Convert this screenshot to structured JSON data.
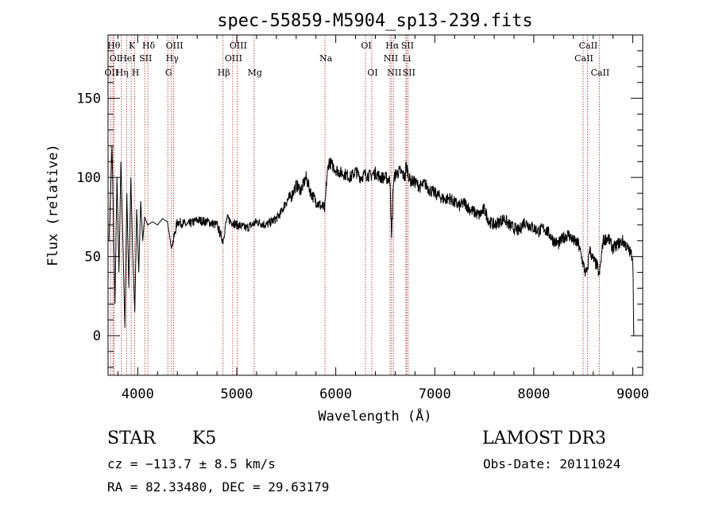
{
  "chart_data": {
    "type": "line",
    "title": "spec-55859-M5904_sp13-239.fits",
    "xlabel": "Wavelength (Å)",
    "ylabel": "Flux (relative)",
    "xlim": [
      3700,
      9100
    ],
    "ylim": [
      -25,
      190
    ],
    "xticks": [
      {
        "value": 4000,
        "label": "4000"
      },
      {
        "value": 5000,
        "label": "5000"
      },
      {
        "value": 6000,
        "label": "6000"
      },
      {
        "value": 7000,
        "label": "7000"
      },
      {
        "value": 8000,
        "label": "8000"
      },
      {
        "value": 9000,
        "label": "9000"
      }
    ],
    "yticks": [
      {
        "value": 0,
        "label": "0"
      },
      {
        "value": 50,
        "label": "50"
      },
      {
        "value": 100,
        "label": "100"
      },
      {
        "value": 150,
        "label": "150"
      }
    ],
    "series": [
      {
        "name": "flux",
        "x": [
          3710,
          3740,
          3770,
          3790,
          3810,
          3830,
          3850,
          3870,
          3890,
          3910,
          3930,
          3950,
          3970,
          3990,
          4010,
          4030,
          4050,
          4070,
          4100,
          4150,
          4200,
          4250,
          4300,
          4340,
          4400,
          4500,
          4600,
          4700,
          4800,
          4860,
          4900,
          4950,
          5000,
          5100,
          5200,
          5300,
          5400,
          5450,
          5500,
          5550,
          5600,
          5650,
          5700,
          5750,
          5800,
          5850,
          5890,
          5910,
          5930,
          5960,
          6000,
          6050,
          6100,
          6150,
          6200,
          6250,
          6300,
          6350,
          6400,
          6450,
          6500,
          6550,
          6563,
          6580,
          6600,
          6650,
          6700,
          6710,
          6750,
          6800,
          6850,
          6900,
          6950,
          7000,
          7050,
          7100,
          7150,
          7200,
          7250,
          7300,
          7350,
          7400,
          7450,
          7500,
          7550,
          7600,
          7650,
          7700,
          7750,
          7800,
          7850,
          7900,
          7950,
          8000,
          8050,
          8100,
          8150,
          8200,
          8250,
          8300,
          8350,
          8400,
          8450,
          8500,
          8520,
          8542,
          8560,
          8600,
          8640,
          8662,
          8700,
          8750,
          8800,
          8850,
          8900,
          8950,
          9000,
          9010
        ],
        "values": [
          60,
          120,
          20,
          100,
          40,
          110,
          60,
          5,
          90,
          30,
          100,
          50,
          15,
          80,
          40,
          85,
          60,
          75,
          70,
          72,
          70,
          74,
          72,
          55,
          72,
          70,
          73,
          72,
          70,
          60,
          74,
          72,
          70,
          68,
          72,
          70,
          74,
          78,
          85,
          88,
          95,
          92,
          100,
          90,
          85,
          82,
          80,
          100,
          110,
          108,
          105,
          103,
          102,
          100,
          104,
          100,
          102,
          101,
          103,
          100,
          100,
          98,
          60,
          95,
          102,
          104,
          100,
          108,
          98,
          97,
          94,
          96,
          92,
          90,
          88,
          86,
          87,
          84,
          82,
          84,
          80,
          78,
          76,
          80,
          72,
          70,
          72,
          74,
          70,
          68,
          66,
          72,
          70,
          68,
          66,
          68,
          65,
          60,
          58,
          62,
          64,
          60,
          58,
          45,
          40,
          40,
          55,
          48,
          44,
          38,
          60,
          62,
          55,
          58,
          60,
          55,
          50,
          0
        ]
      }
    ],
    "lines": [
      {
        "label": "OII",
        "wave": 3727,
        "row": 3
      },
      {
        "label": "Hθ",
        "wave": 3750,
        "row": 1
      },
      {
        "label": "OI",
        "wave": 3760,
        "row": 2
      },
      {
        "label": "Hη",
        "wave": 3835,
        "row": 3
      },
      {
        "label": "HeI",
        "wave": 3888,
        "row": 2
      },
      {
        "label": "K",
        "wave": 3934,
        "row": 1
      },
      {
        "label": "H",
        "wave": 3969,
        "row": 3
      },
      {
        "label": "SII",
        "wave": 4071,
        "row": 2
      },
      {
        "label": "Hδ",
        "wave": 4102,
        "row": 1
      },
      {
        "label": "G",
        "wave": 4304,
        "row": 3
      },
      {
        "label": "Hγ",
        "wave": 4340,
        "row": 2
      },
      {
        "label": "OIII",
        "wave": 4363,
        "row": 1
      },
      {
        "label": "Hβ",
        "wave": 4861,
        "row": 3
      },
      {
        "label": "OIII",
        "wave": 4959,
        "row": 2
      },
      {
        "label": "OIII",
        "wave": 5007,
        "row": 1
      },
      {
        "label": "Mg",
        "wave": 5175,
        "row": 3
      },
      {
        "label": "Na",
        "wave": 5892,
        "row": 2
      },
      {
        "label": "OI",
        "wave": 6300,
        "row": 1
      },
      {
        "label": "OI",
        "wave": 6364,
        "row": 3
      },
      {
        "label": "NII",
        "wave": 6548,
        "row": 2
      },
      {
        "label": "Hα",
        "wave": 6563,
        "row": 1
      },
      {
        "label": "NII",
        "wave": 6583,
        "row": 3
      },
      {
        "label": "Li",
        "wave": 6708,
        "row": 2
      },
      {
        "label": "SII",
        "wave": 6716,
        "row": 1
      },
      {
        "label": "SII",
        "wave": 6731,
        "row": 3
      },
      {
        "label": "CaII",
        "wave": 8498,
        "row": 2
      },
      {
        "label": "CaII",
        "wave": 8542,
        "row": 1
      },
      {
        "label": "CaII",
        "wave": 8662,
        "row": 3
      }
    ]
  },
  "info": {
    "class": "STAR",
    "subclass": "K5",
    "survey": "LAMOST DR3",
    "cz": "cz = −113.7 ± 8.5 km/s",
    "obs_date": "Obs-Date: 20111024",
    "radec": "RA =  82.33480, DEC =  29.63179"
  }
}
